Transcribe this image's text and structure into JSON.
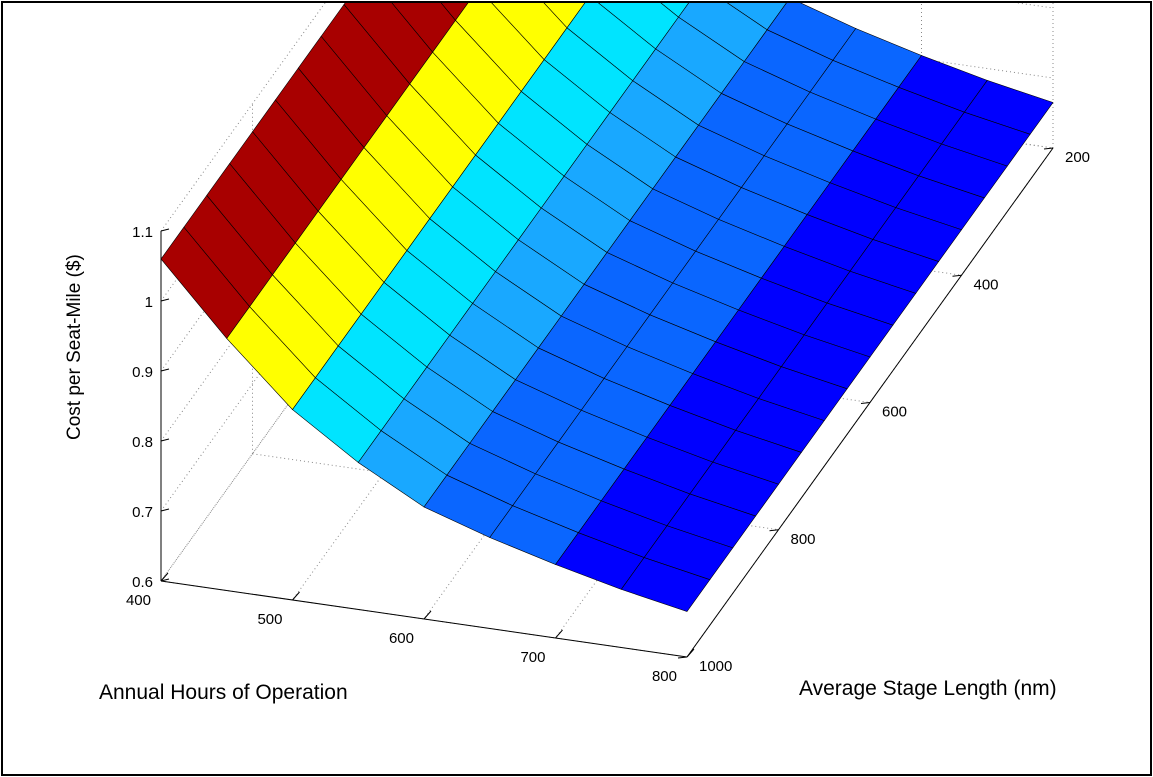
{
  "chart_data": {
    "type": "surface",
    "title": "",
    "xlabel": "Annual Hours of Operation",
    "ylabel": "Average Stage Length (nm)",
    "zlabel": "Cost per Seat-Mile ($)",
    "x_ticks": [
      "400",
      "500",
      "600",
      "700",
      "800"
    ],
    "y_ticks": [
      "200",
      "400",
      "600",
      "800",
      "1000"
    ],
    "z_ticks": [
      "0.6",
      "0.7",
      "0.8",
      "0.9",
      "1",
      "1.1"
    ],
    "xlim": [
      400,
      800
    ],
    "ylim": [
      200,
      1000
    ],
    "zlim": [
      0.6,
      1.1
    ],
    "grid": true,
    "colormap": "jet",
    "colors": [
      "#0000a8",
      "#0000ff",
      "#0a66ff",
      "#19a8ff",
      "#00e4ff",
      "#66ffa8",
      "#ffff00",
      "#ff6a00",
      "#a80000"
    ],
    "surface_profile": {
      "hours": [
        400,
        450,
        500,
        550,
        600,
        650,
        700,
        750,
        800
      ],
      "cost": [
        1.06,
        0.96,
        0.872,
        0.81,
        0.76,
        0.73,
        0.705,
        0.683,
        0.665
      ]
    },
    "stage_length_samples": [
      200,
      250,
      300,
      350,
      400,
      450,
      500,
      550,
      600,
      650,
      700,
      750,
      800,
      850,
      900,
      950,
      1000
    ]
  }
}
